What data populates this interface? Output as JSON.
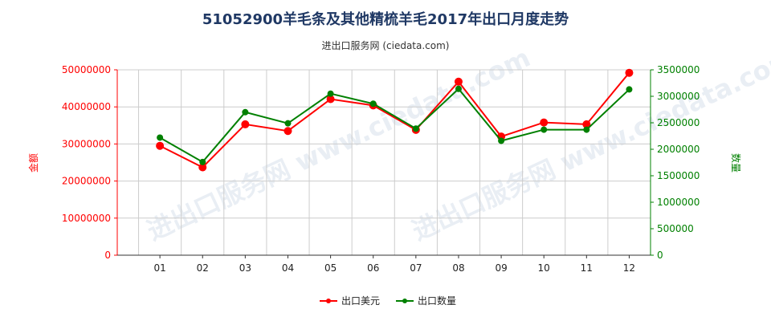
{
  "title": "51052900羊毛条及其他精梳羊毛2017年出口月度走势",
  "subtitle": "进出口服务网 (ciedata.com)",
  "watermark": "进出口服务网 www.ciedata.com",
  "colors": {
    "left_series": "#ff0000",
    "right_series": "#008000",
    "grid": "#cccccc",
    "title": "#1f3864"
  },
  "chart_data": {
    "type": "line",
    "title": "51052900羊毛条及其他精梳羊毛2017年出口月度走势",
    "categories": [
      "01",
      "02",
      "03",
      "04",
      "05",
      "06",
      "07",
      "08",
      "09",
      "10",
      "11",
      "12"
    ],
    "y_left": {
      "label": "金额",
      "range": [
        0,
        50000000
      ],
      "ticks": [
        0,
        10000000,
        20000000,
        30000000,
        40000000,
        50000000
      ],
      "tick_labels": [
        "0",
        "10000000",
        "20000000",
        "30000000",
        "40000000",
        "50000000"
      ]
    },
    "y_right": {
      "label": "数量",
      "range": [
        0,
        3500000
      ],
      "ticks": [
        0,
        500000,
        1000000,
        1500000,
        2000000,
        2500000,
        3000000,
        3500000
      ],
      "tick_labels": [
        "0",
        "500000",
        "1000000",
        "1500000",
        "2000000",
        "2500000",
        "3000000",
        "3500000"
      ]
    },
    "grid": true,
    "legend_position": "bottom-center",
    "series": [
      {
        "name": "出口美元",
        "axis": "left",
        "color": "#ff0000",
        "values": [
          29500000,
          23700000,
          35300000,
          33500000,
          42100000,
          40400000,
          33800000,
          46800000,
          32000000,
          35800000,
          35300000,
          49200000
        ]
      },
      {
        "name": "出口数量",
        "axis": "right",
        "color": "#008000",
        "values": [
          2220000,
          1760000,
          2700000,
          2490000,
          3050000,
          2860000,
          2390000,
          3140000,
          2160000,
          2370000,
          2370000,
          3130000
        ]
      }
    ]
  }
}
